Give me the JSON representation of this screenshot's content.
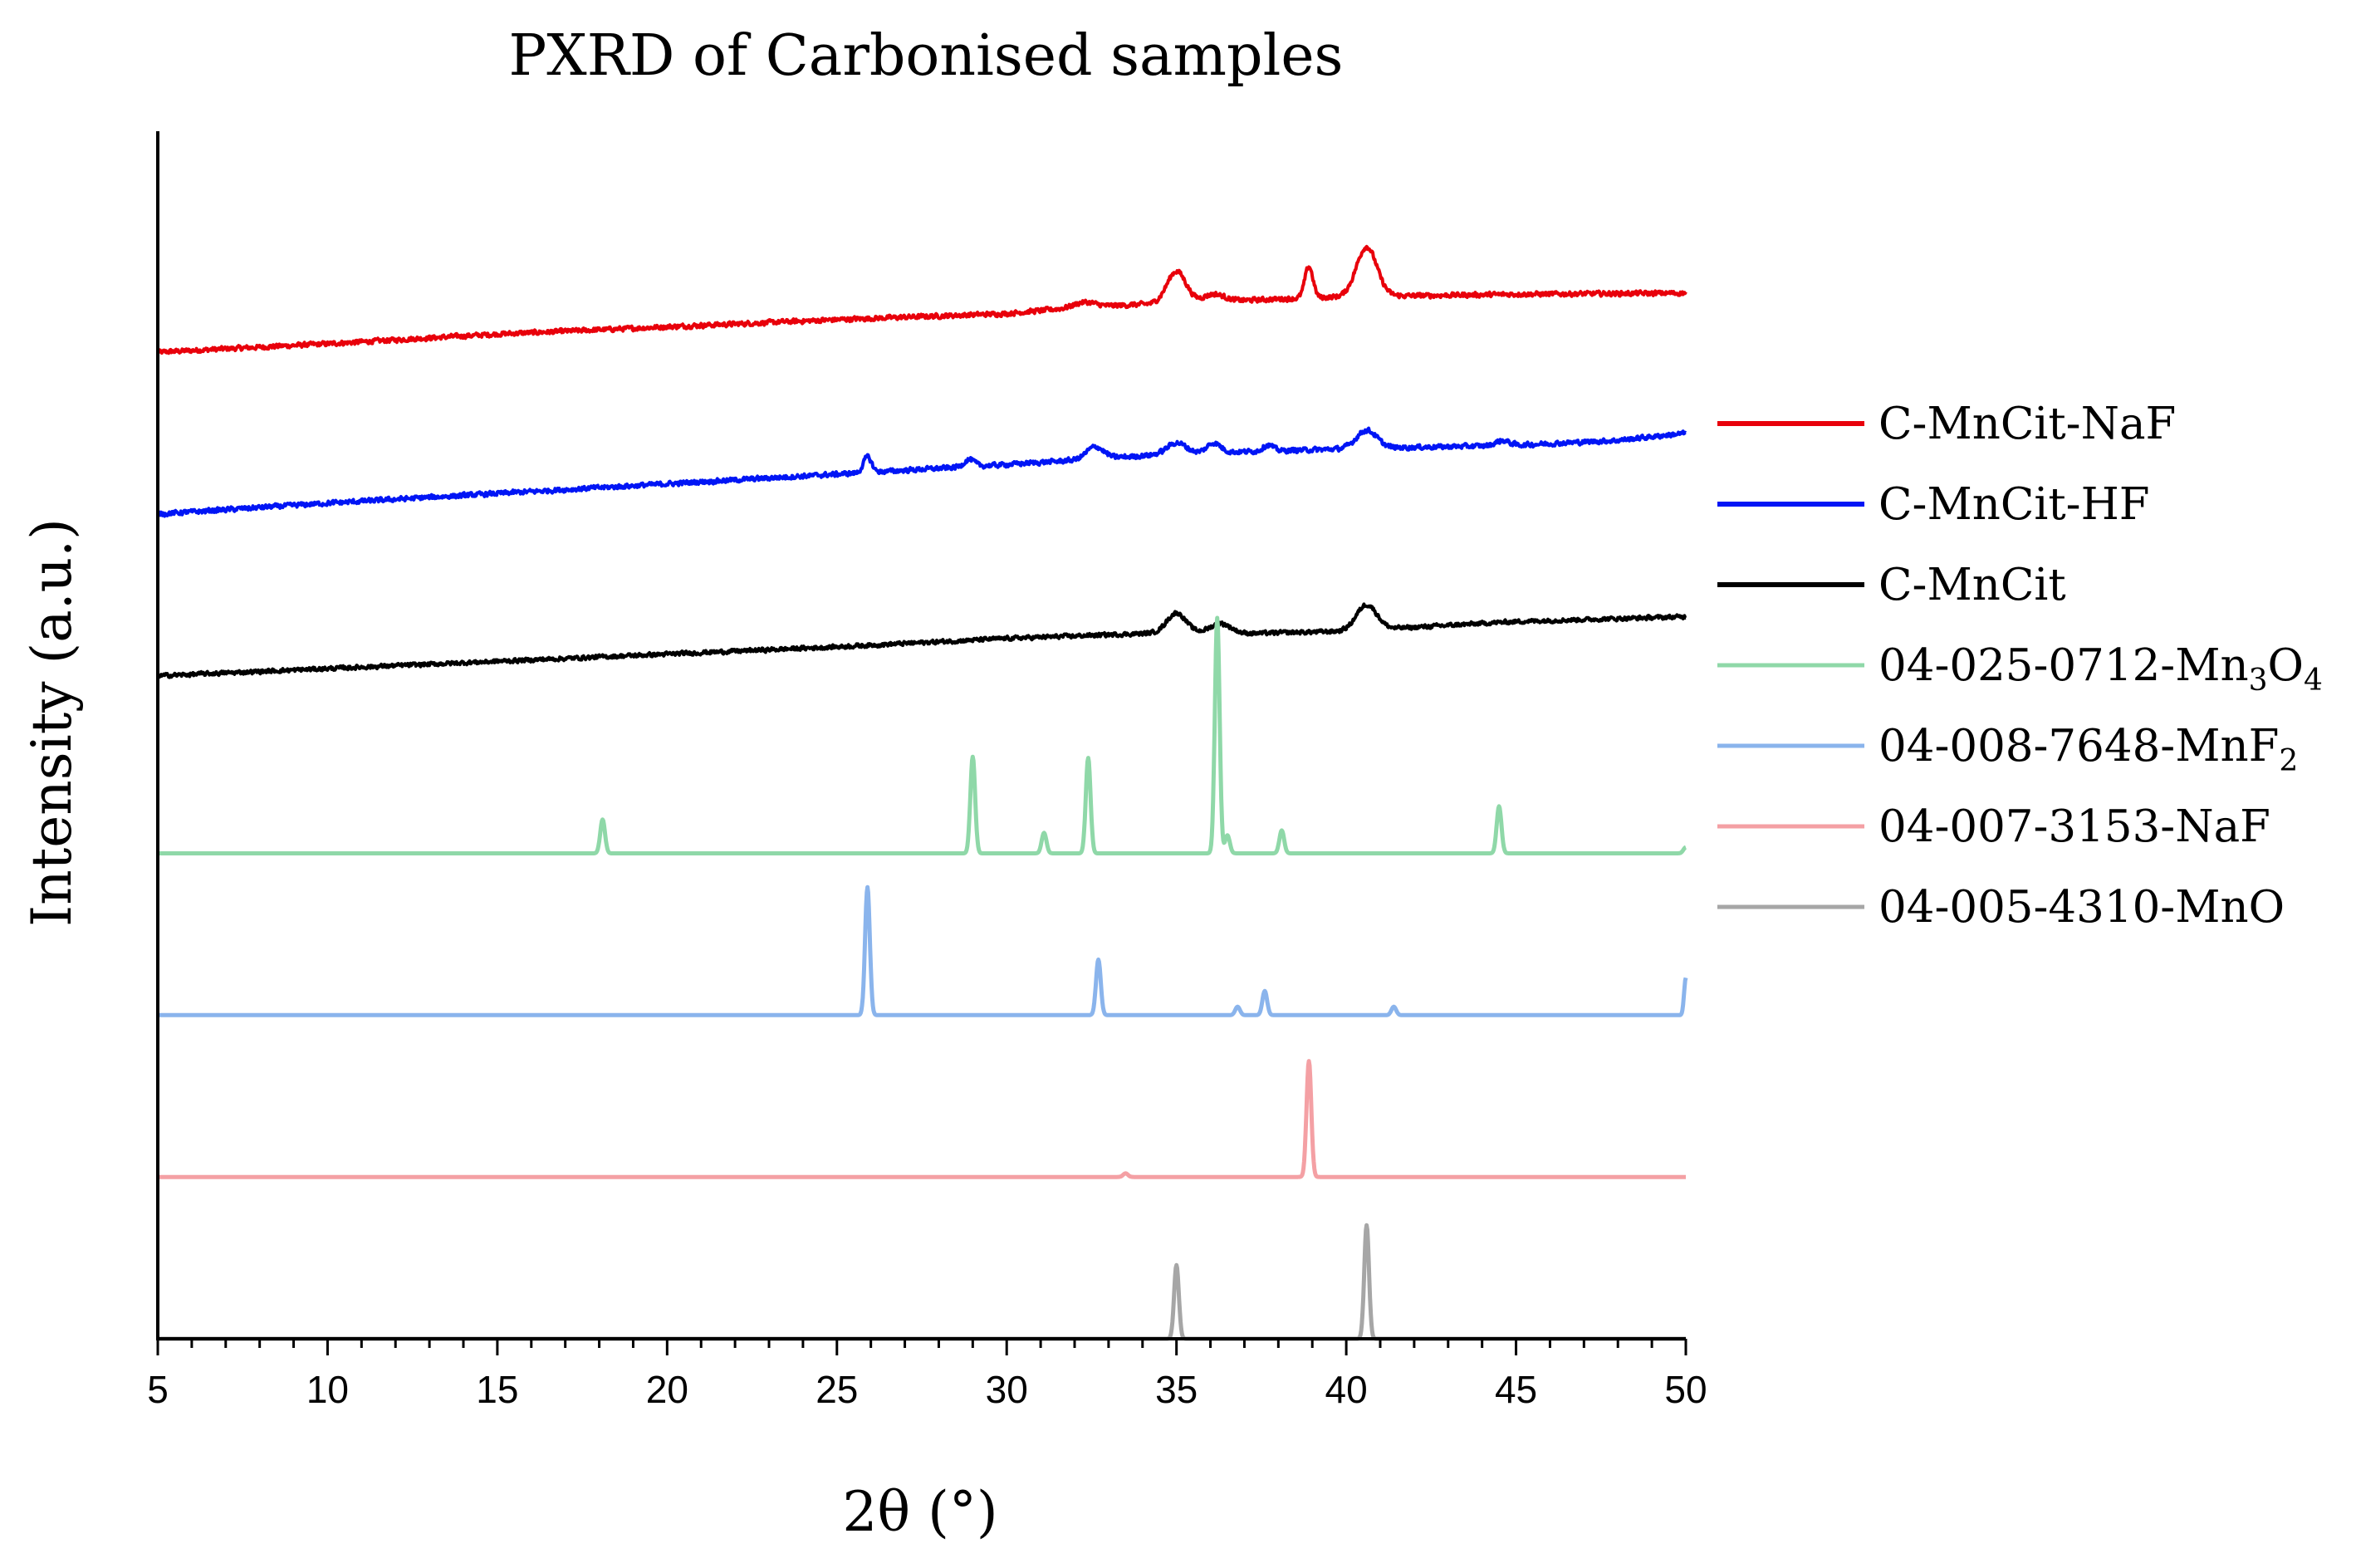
{
  "chart_data": {
    "type": "line",
    "title": "PXRD of Carbonised samples",
    "xlabel": "2θ (°)",
    "ylabel": "Intensity (a.u.)",
    "xlim": [
      5,
      50
    ],
    "ylim": [
      0,
      100
    ],
    "x_ticks": [
      5,
      10,
      15,
      20,
      25,
      30,
      35,
      40,
      45,
      50
    ],
    "x_tick_labels": [
      "5",
      "10",
      "15",
      "20",
      "25",
      "30",
      "35",
      "40",
      "45",
      "50"
    ],
    "y_ticks_shown": false,
    "legend_position": "right",
    "series": [
      {
        "name": "C-MnCit-NaF",
        "legend_label": {
          "main": "C-MnCit-NaF",
          "parts": []
        },
        "color": "#e8000b",
        "kind": "measured",
        "noise": 0.35,
        "points": [
          [
            5,
            81.7
          ],
          [
            10,
            82.4
          ],
          [
            15,
            83.2
          ],
          [
            20,
            83.8
          ],
          [
            25,
            84.4
          ],
          [
            30,
            84.9
          ],
          [
            32,
            85.4
          ],
          [
            35,
            85.8
          ],
          [
            40,
            86.3
          ],
          [
            45,
            86.5
          ],
          [
            50,
            86.6
          ]
        ],
        "peaks": [
          {
            "pos": 35.0,
            "h": 2.6,
            "w": 0.28
          },
          {
            "pos": 36.1,
            "h": 0.6,
            "w": 0.3
          },
          {
            "pos": 38.9,
            "h": 2.6,
            "w": 0.12
          },
          {
            "pos": 40.6,
            "h": 4.1,
            "w": 0.3
          },
          {
            "pos": 32.3,
            "h": 0.4,
            "w": 0.3
          }
        ]
      },
      {
        "name": "C-MnCit-HF",
        "legend_label": {
          "main": "C-MnCit-HF",
          "parts": []
        },
        "color": "#0015f5",
        "kind": "measured",
        "noise": 0.35,
        "points": [
          [
            5,
            68.3
          ],
          [
            10,
            69.2
          ],
          [
            15,
            70.0
          ],
          [
            20,
            70.8
          ],
          [
            25,
            71.6
          ],
          [
            30,
            72.4
          ],
          [
            35,
            73.3
          ],
          [
            40,
            73.7
          ],
          [
            45,
            74.0
          ],
          [
            48,
            74.4
          ],
          [
            50,
            75.0
          ]
        ],
        "peaks": [
          {
            "pos": 25.9,
            "h": 1.3,
            "w": 0.12
          },
          {
            "pos": 28.9,
            "h": 0.6,
            "w": 0.15
          },
          {
            "pos": 32.6,
            "h": 1.0,
            "w": 0.25
          },
          {
            "pos": 35.0,
            "h": 0.9,
            "w": 0.28
          },
          {
            "pos": 36.1,
            "h": 0.8,
            "w": 0.2
          },
          {
            "pos": 37.7,
            "h": 0.5,
            "w": 0.15
          },
          {
            "pos": 40.6,
            "h": 1.5,
            "w": 0.3
          },
          {
            "pos": 44.6,
            "h": 0.4,
            "w": 0.2
          }
        ]
      },
      {
        "name": "C-MnCit",
        "legend_label": {
          "main": "C-MnCit",
          "parts": []
        },
        "color": "#000000",
        "kind": "measured",
        "noise": 0.3,
        "points": [
          [
            5,
            54.9
          ],
          [
            10,
            55.5
          ],
          [
            15,
            56.1
          ],
          [
            20,
            56.7
          ],
          [
            25,
            57.3
          ],
          [
            30,
            58.0
          ],
          [
            35,
            58.5
          ],
          [
            37,
            58.4
          ],
          [
            40,
            58.6
          ],
          [
            45,
            59.4
          ],
          [
            50,
            59.8
          ]
        ],
        "peaks": [
          {
            "pos": 35.0,
            "h": 1.6,
            "w": 0.28
          },
          {
            "pos": 36.3,
            "h": 0.8,
            "w": 0.3
          },
          {
            "pos": 40.6,
            "h": 2.1,
            "w": 0.3
          }
        ]
      },
      {
        "name": "04-025-0712-Mn3O4",
        "legend_label": {
          "main": "04-025-0712-Mn",
          "parts": [
            {
              "t": "3",
              "sub": true
            },
            {
              "t": "O",
              "sub": false
            },
            {
              "t": "4",
              "sub": true
            }
          ]
        },
        "color": "#8fd8a8",
        "kind": "reference",
        "baseline": 40.2,
        "points": [],
        "peaks": [
          {
            "pos": 18.1,
            "h": 2.8,
            "w": 0.07
          },
          {
            "pos": 29.0,
            "h": 8.0,
            "w": 0.07
          },
          {
            "pos": 31.1,
            "h": 1.7,
            "w": 0.07
          },
          {
            "pos": 32.4,
            "h": 7.9,
            "w": 0.07
          },
          {
            "pos": 36.2,
            "h": 19.5,
            "w": 0.07
          },
          {
            "pos": 36.5,
            "h": 1.5,
            "w": 0.07
          },
          {
            "pos": 38.1,
            "h": 1.9,
            "w": 0.07
          },
          {
            "pos": 44.5,
            "h": 3.9,
            "w": 0.07
          },
          {
            "pos": 50.0,
            "h": 0.5,
            "w": 0.07
          }
        ]
      },
      {
        "name": "04-008-7648-MnF2",
        "legend_label": {
          "main": "04-008-7648-MnF",
          "parts": [
            {
              "t": "2",
              "sub": true
            }
          ]
        },
        "color": "#8ab4ec",
        "kind": "reference",
        "baseline": 26.8,
        "points": [],
        "peaks": [
          {
            "pos": 25.9,
            "h": 10.6,
            "w": 0.07
          },
          {
            "pos": 32.7,
            "h": 4.6,
            "w": 0.07
          },
          {
            "pos": 36.8,
            "h": 0.7,
            "w": 0.07
          },
          {
            "pos": 37.6,
            "h": 2.0,
            "w": 0.07
          },
          {
            "pos": 41.4,
            "h": 0.7,
            "w": 0.07
          },
          {
            "pos": 50.0,
            "h": 3.1,
            "w": 0.05
          }
        ]
      },
      {
        "name": "04-007-3153-NaF",
        "legend_label": {
          "main": "04-007-3153-NaF",
          "parts": []
        },
        "color": "#f4a0a4",
        "kind": "reference",
        "baseline": 13.4,
        "points": [],
        "peaks": [
          {
            "pos": 33.5,
            "h": 0.3,
            "w": 0.07
          },
          {
            "pos": 38.9,
            "h": 9.6,
            "w": 0.07
          }
        ]
      },
      {
        "name": "04-005-4310-MnO",
        "legend_label": {
          "main": "04-005-4310-MnO",
          "parts": []
        },
        "color": "#a6a6a6",
        "kind": "reference",
        "baseline": 0.0,
        "points": [],
        "peaks": [
          {
            "pos": 35.0,
            "h": 6.1,
            "w": 0.07
          },
          {
            "pos": 40.6,
            "h": 9.4,
            "w": 0.07
          }
        ]
      }
    ]
  }
}
